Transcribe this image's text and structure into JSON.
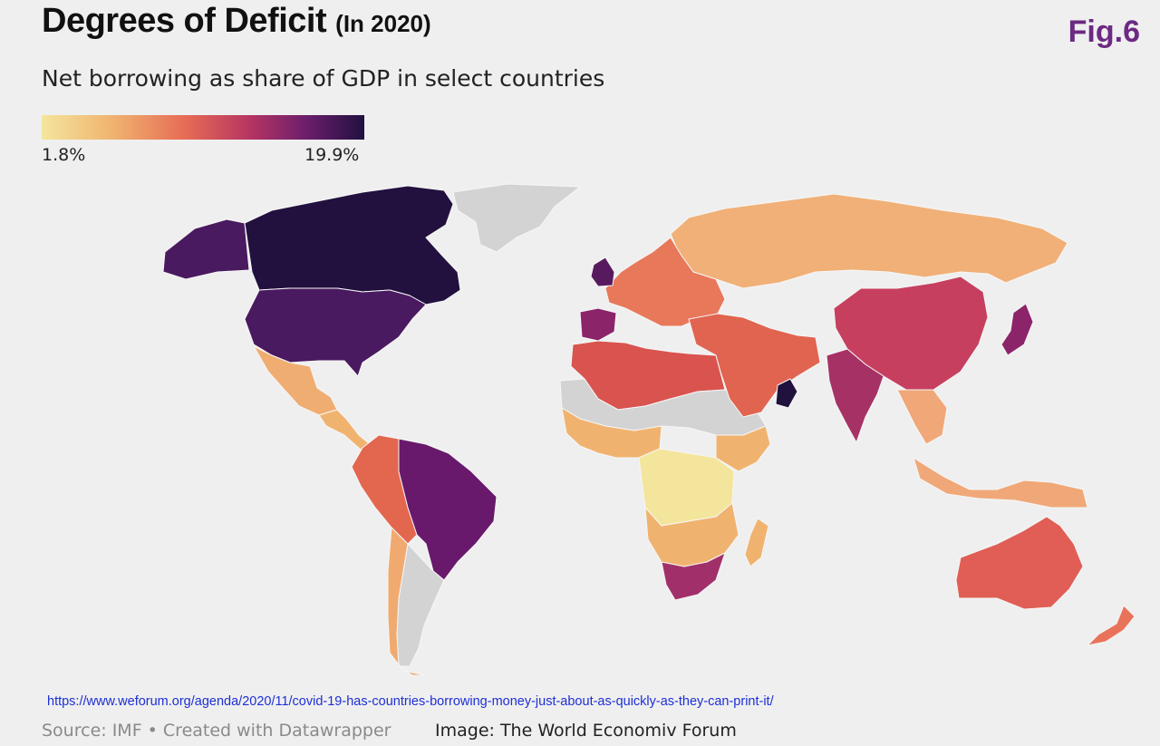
{
  "header": {
    "title": "Degrees of Deficit",
    "title_note": "(In 2020)",
    "fig_label": "Fig.6",
    "subtitle": "Net borrowing as share of GDP in select countries"
  },
  "legend": {
    "min_label": "1.8%",
    "max_label": "19.9%",
    "colors": [
      "#f4e59d",
      "#f0b36f",
      "#e66a55",
      "#b43462",
      "#6c1e6c",
      "#20113f"
    ]
  },
  "map": {
    "no_data_color": "#d3d3d3",
    "regions": [
      {
        "name": "Canada",
        "color": "#22113f"
      },
      {
        "name": "Alaska",
        "color": "#4a1a60"
      },
      {
        "name": "United States",
        "color": "#4a1a60"
      },
      {
        "name": "Greenland",
        "color": "#d3d3d3"
      },
      {
        "name": "Mexico",
        "color": "#f0ad72"
      },
      {
        "name": "Central America",
        "color": "#f0b36f"
      },
      {
        "name": "Brazil",
        "color": "#68196c"
      },
      {
        "name": "Andean South America",
        "color": "#e3664f"
      },
      {
        "name": "Argentina",
        "color": "#d3d3d3"
      },
      {
        "name": "Chile",
        "color": "#f0aa70"
      },
      {
        "name": "Russia",
        "color": "#f0b077"
      },
      {
        "name": "Europe",
        "color": "#e8785a"
      },
      {
        "name": "UK",
        "color": "#581a5e"
      },
      {
        "name": "Iberia",
        "color": "#8c246a"
      },
      {
        "name": "North Africa",
        "color": "#d9544f"
      },
      {
        "name": "Sahel",
        "color": "#d3d3d3"
      },
      {
        "name": "West Africa",
        "color": "#f0b36f"
      },
      {
        "name": "Central Africa",
        "color": "#f4e59d"
      },
      {
        "name": "East Africa",
        "color": "#f0b36f"
      },
      {
        "name": "Southern Africa",
        "color": "#f0b36f"
      },
      {
        "name": "South Africa",
        "color": "#a1306a"
      },
      {
        "name": "Madagascar",
        "color": "#f0b36f"
      },
      {
        "name": "Middle East",
        "color": "#e06450"
      },
      {
        "name": "Oman",
        "color": "#20113f"
      },
      {
        "name": "China",
        "color": "#c73f5f"
      },
      {
        "name": "India",
        "color": "#a63265"
      },
      {
        "name": "Southeast Asia",
        "color": "#f0a878"
      },
      {
        "name": "Japan",
        "color": "#8c246a"
      },
      {
        "name": "Indonesia",
        "color": "#f0a878"
      },
      {
        "name": "Australia",
        "color": "#e05e55"
      },
      {
        "name": "New Zealand",
        "color": "#e8735a"
      }
    ]
  },
  "footer": {
    "url": "https://www.weforum.org/agenda/2020/11/covid-19-has-countries-borrowing-money-just-about-as-quickly-as-they-can-print-it/",
    "source": "Source: IMF • Created with Datawrapper",
    "image_credit": "Image: The World Economiv Forum"
  }
}
